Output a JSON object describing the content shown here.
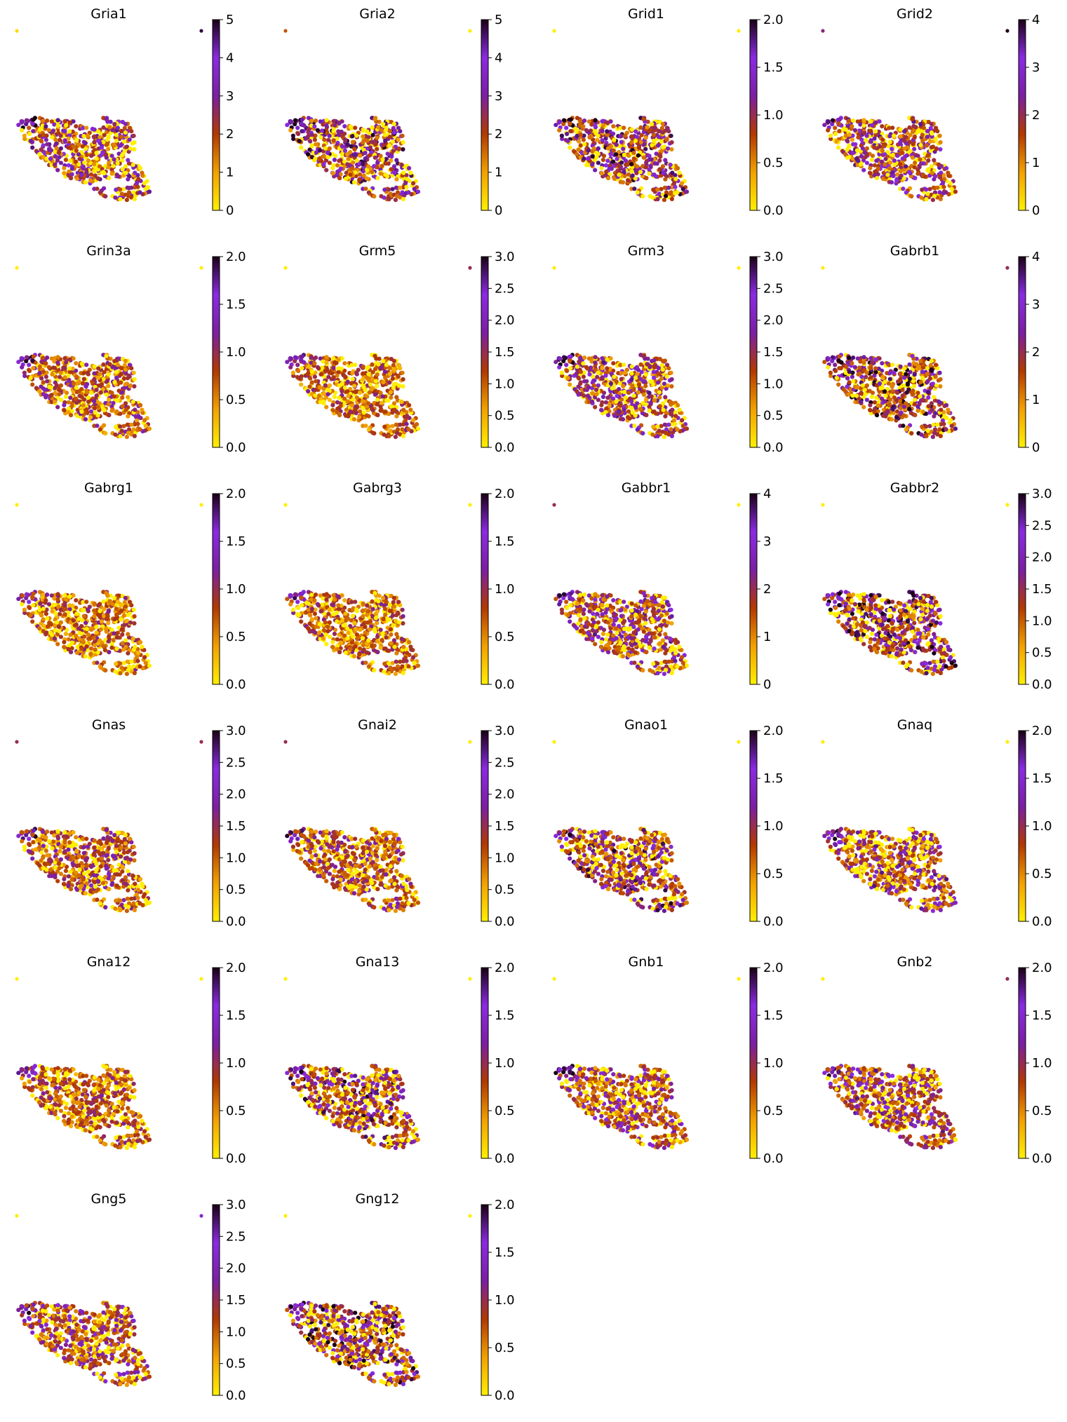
{
  "figure": {
    "colors": {
      "colormap": [
        "#ffef00",
        "#f2a100",
        "#b23900",
        "#7b1fa2",
        "#8a2be2",
        "#1a0015"
      ],
      "colormap_name": "gnuplot-like (yellow to orange to dark red to purple to black)",
      "low": "#ffef00",
      "high": "#1a0015"
    }
  },
  "chart_data": [
    {
      "type": "scatter",
      "title": "Gria1",
      "color_max": 5,
      "ticks": [
        "0",
        "1",
        "2",
        "3",
        "4",
        "5"
      ],
      "outliers": [
        0.05,
        0.95
      ],
      "mean_level": 0.45
    },
    {
      "type": "scatter",
      "title": "Gria2",
      "color_max": 5,
      "ticks": [
        "0",
        "1",
        "2",
        "3",
        "4",
        "5"
      ],
      "outliers": [
        0.35,
        0.0
      ],
      "mean_level": 0.5
    },
    {
      "type": "scatter",
      "title": "Grid1",
      "color_max": 2.0,
      "ticks": [
        "0.0",
        "0.5",
        "1.0",
        "1.5",
        "2.0"
      ],
      "outliers": [
        0.0,
        0.0
      ],
      "mean_level": 0.5
    },
    {
      "type": "scatter",
      "title": "Grid2",
      "color_max": 4,
      "ticks": [
        "0",
        "1",
        "2",
        "3",
        "4"
      ],
      "outliers": [
        0.55,
        1.0
      ],
      "mean_level": 0.45
    },
    {
      "type": "scatter",
      "title": "Grin3a",
      "color_max": 2.0,
      "ticks": [
        "0.0",
        "0.5",
        "1.0",
        "1.5",
        "2.0"
      ],
      "outliers": [
        0.0,
        0.0
      ],
      "mean_level": 0.35
    },
    {
      "type": "scatter",
      "title": "Grm5",
      "color_max": 3.0,
      "ticks": [
        "0.0",
        "0.5",
        "1.0",
        "1.5",
        "2.0",
        "2.5",
        "3.0"
      ],
      "outliers": [
        0.0,
        0.5
      ],
      "mean_level": 0.3
    },
    {
      "type": "scatter",
      "title": "Grm3",
      "color_max": 3.0,
      "ticks": [
        "0.0",
        "0.5",
        "1.0",
        "1.5",
        "2.0",
        "2.5",
        "3.0"
      ],
      "outliers": [
        0.0,
        0.0
      ],
      "mean_level": 0.45
    },
    {
      "type": "scatter",
      "title": "Gabrb1",
      "color_max": 4,
      "ticks": [
        "0",
        "1",
        "2",
        "3",
        "4"
      ],
      "outliers": [
        0.0,
        0.5
      ],
      "mean_level": 0.55
    },
    {
      "type": "scatter",
      "title": "Gabrg1",
      "color_max": 2.0,
      "ticks": [
        "0.0",
        "0.5",
        "1.0",
        "1.5",
        "2.0"
      ],
      "outliers": [
        0.0,
        0.0
      ],
      "mean_level": 0.3
    },
    {
      "type": "scatter",
      "title": "Gabrg3",
      "color_max": 2.0,
      "ticks": [
        "0.0",
        "0.5",
        "1.0",
        "1.5",
        "2.0"
      ],
      "outliers": [
        0.0,
        0.0
      ],
      "mean_level": 0.3
    },
    {
      "type": "scatter",
      "title": "Gabbr1",
      "color_max": 4,
      "ticks": [
        "0",
        "1",
        "2",
        "3",
        "4"
      ],
      "outliers": [
        0.5,
        0.0
      ],
      "mean_level": 0.45
    },
    {
      "type": "scatter",
      "title": "Gabbr2",
      "color_max": 3.0,
      "ticks": [
        "0.0",
        "0.5",
        "1.0",
        "1.5",
        "2.0",
        "2.5",
        "3.0"
      ],
      "outliers": [
        0.0,
        0.0
      ],
      "mean_level": 0.55
    },
    {
      "type": "scatter",
      "title": "Gnas",
      "color_max": 3.0,
      "ticks": [
        "0.0",
        "0.5",
        "1.0",
        "1.5",
        "2.0",
        "2.5",
        "3.0"
      ],
      "outliers": [
        0.5,
        0.5
      ],
      "mean_level": 0.35
    },
    {
      "type": "scatter",
      "title": "Gnai2",
      "color_max": 3.0,
      "ticks": [
        "0.0",
        "0.5",
        "1.0",
        "1.5",
        "2.0",
        "2.5",
        "3.0"
      ],
      "outliers": [
        0.5,
        0.0
      ],
      "mean_level": 0.35
    },
    {
      "type": "scatter",
      "title": "Gnao1",
      "color_max": 2.0,
      "ticks": [
        "0.0",
        "0.5",
        "1.0",
        "1.5",
        "2.0"
      ],
      "outliers": [
        0.0,
        0.0
      ],
      "mean_level": 0.5
    },
    {
      "type": "scatter",
      "title": "Gnaq",
      "color_max": 2.0,
      "ticks": [
        "0.0",
        "0.5",
        "1.0",
        "1.5",
        "2.0"
      ],
      "outliers": [
        0.0,
        0.0
      ],
      "mean_level": 0.45
    },
    {
      "type": "scatter",
      "title": "Gna12",
      "color_max": 2.0,
      "ticks": [
        "0.0",
        "0.5",
        "1.0",
        "1.5",
        "2.0"
      ],
      "outliers": [
        0.0,
        0.0
      ],
      "mean_level": 0.3
    },
    {
      "type": "scatter",
      "title": "Gna13",
      "color_max": 2.0,
      "ticks": [
        "0.0",
        "0.5",
        "1.0",
        "1.5",
        "2.0"
      ],
      "outliers": [
        0.0,
        0.0
      ],
      "mean_level": 0.5
    },
    {
      "type": "scatter",
      "title": "Gnb1",
      "color_max": 2.0,
      "ticks": [
        "0.0",
        "0.5",
        "1.0",
        "1.5",
        "2.0"
      ],
      "outliers": [
        0.0,
        0.0
      ],
      "mean_level": 0.4
    },
    {
      "type": "scatter",
      "title": "Gnb2",
      "color_max": 2.0,
      "ticks": [
        "0.0",
        "0.5",
        "1.0",
        "1.5",
        "2.0"
      ],
      "outliers": [
        0.0,
        0.5
      ],
      "mean_level": 0.45
    },
    {
      "type": "scatter",
      "title": "Gng5",
      "color_max": 3.0,
      "ticks": [
        "0.0",
        "0.5",
        "1.0",
        "1.5",
        "2.0",
        "2.5",
        "3.0"
      ],
      "outliers": [
        0.0,
        0.75
      ],
      "mean_level": 0.4
    },
    {
      "type": "scatter",
      "title": "Gng12",
      "color_max": 2.0,
      "ticks": [
        "0.0",
        "0.5",
        "1.0",
        "1.5",
        "2.0"
      ],
      "outliers": [
        0.0,
        0.0
      ],
      "mean_level": 0.55
    }
  ]
}
